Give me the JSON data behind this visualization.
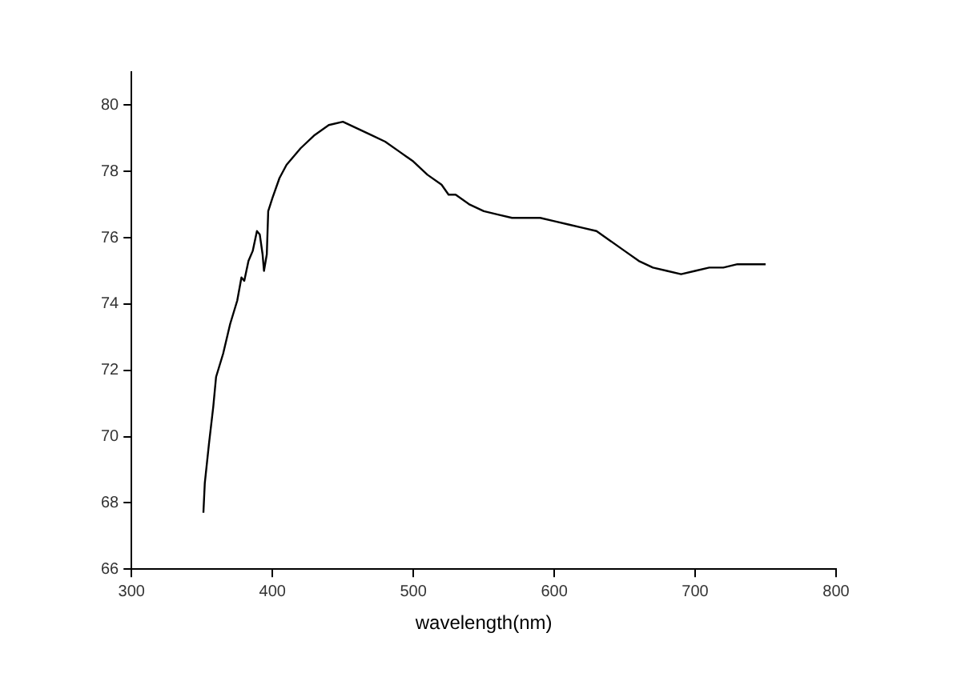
{
  "chart_data": {
    "type": "line",
    "xlabel": "wavelength(nm)",
    "xlim": [
      300,
      800
    ],
    "xticks": [
      300,
      400,
      500,
      600,
      700,
      800
    ],
    "ylim": [
      66,
      81
    ],
    "yticks": [
      66,
      68,
      70,
      72,
      74,
      76,
      78,
      80
    ],
    "grid": false,
    "legend": false,
    "marker": "none",
    "series": [
      {
        "color": "#000000",
        "x": [
          351,
          352,
          355,
          358,
          360,
          365,
          370,
          375,
          378,
          380,
          383,
          386,
          389,
          391,
          393,
          394,
          396,
          397,
          400,
          405,
          410,
          420,
          430,
          440,
          450,
          460,
          470,
          480,
          490,
          500,
          510,
          520,
          525,
          530,
          540,
          550,
          560,
          570,
          580,
          590,
          600,
          610,
          620,
          630,
          640,
          650,
          660,
          670,
          680,
          690,
          700,
          710,
          720,
          730,
          740,
          750
        ],
        "values": [
          67.7,
          68.6,
          69.8,
          70.9,
          71.8,
          72.5,
          73.4,
          74.1,
          74.8,
          74.7,
          75.3,
          75.6,
          76.2,
          76.1,
          75.5,
          75.0,
          75.5,
          76.8,
          77.2,
          77.8,
          78.2,
          78.7,
          79.1,
          79.4,
          79.5,
          79.3,
          79.1,
          78.9,
          78.6,
          78.3,
          77.9,
          77.6,
          77.3,
          77.3,
          77.0,
          76.8,
          76.7,
          76.6,
          76.6,
          76.6,
          76.5,
          76.4,
          76.3,
          76.2,
          75.9,
          75.6,
          75.3,
          75.1,
          75.0,
          74.9,
          75.0,
          75.1,
          75.1,
          75.2,
          75.2,
          75.2
        ]
      }
    ]
  }
}
